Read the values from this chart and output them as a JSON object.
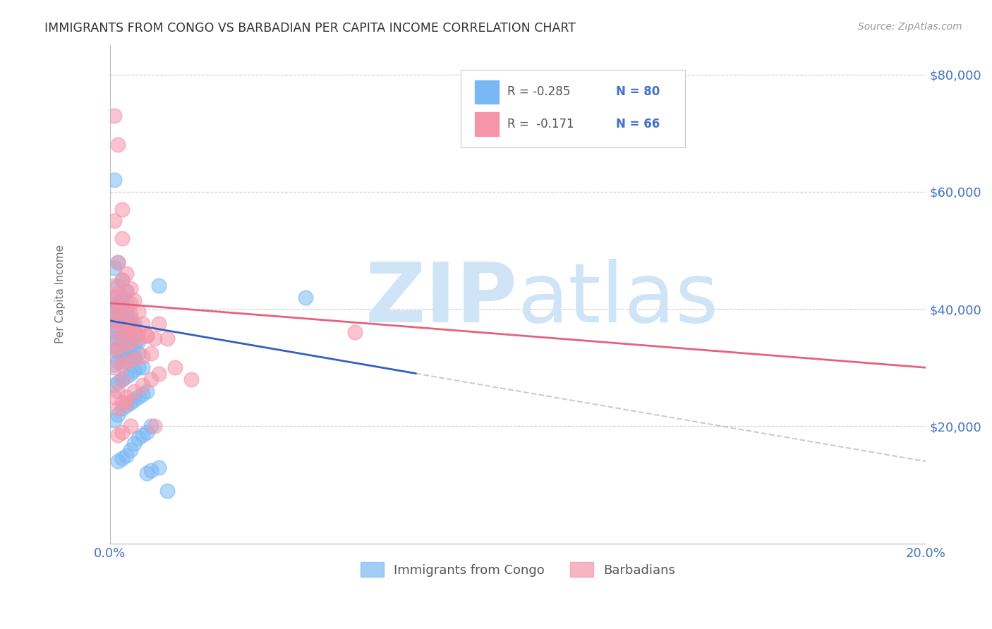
{
  "title": "IMMIGRANTS FROM CONGO VS BARBADIAN PER CAPITA INCOME CORRELATION CHART",
  "source": "Source: ZipAtlas.com",
  "ylabel": "Per Capita Income",
  "color_blue": "#7ab8f5",
  "color_pink": "#f595a8",
  "color_line_blue": "#3060c0",
  "color_line_pink": "#e8607a",
  "color_axis_labels": "#4472c4",
  "color_grid": "#cccccc",
  "color_watermark": "#d0e4f7",
  "background_color": "#ffffff",
  "xlim": [
    0.0,
    0.2
  ],
  "ylim": [
    0,
    85000
  ],
  "ytick_vals": [
    0,
    20000,
    40000,
    60000,
    80000
  ],
  "ytick_labels": [
    "",
    "$20,000",
    "$40,000",
    "$60,000",
    "$80,000"
  ],
  "xtick_positions": [
    0.0,
    0.04,
    0.08,
    0.12,
    0.16,
    0.2
  ],
  "xtick_labels": [
    "0.0%",
    "",
    "",
    "",
    "",
    "20.0%"
  ],
  "r_blue": -0.285,
  "n_blue": 80,
  "r_pink": -0.171,
  "n_pink": 66,
  "legend1_r": "R = -0.285",
  "legend1_n": "N = 80",
  "legend2_r": "R =  -0.171",
  "legend2_n": "N = 66",
  "legend1_label": "Immigrants from Congo",
  "legend2_label": "Barbadians",
  "blue_intercept": 38000,
  "blue_slope": -120000,
  "pink_intercept": 41000,
  "pink_slope": -55000
}
